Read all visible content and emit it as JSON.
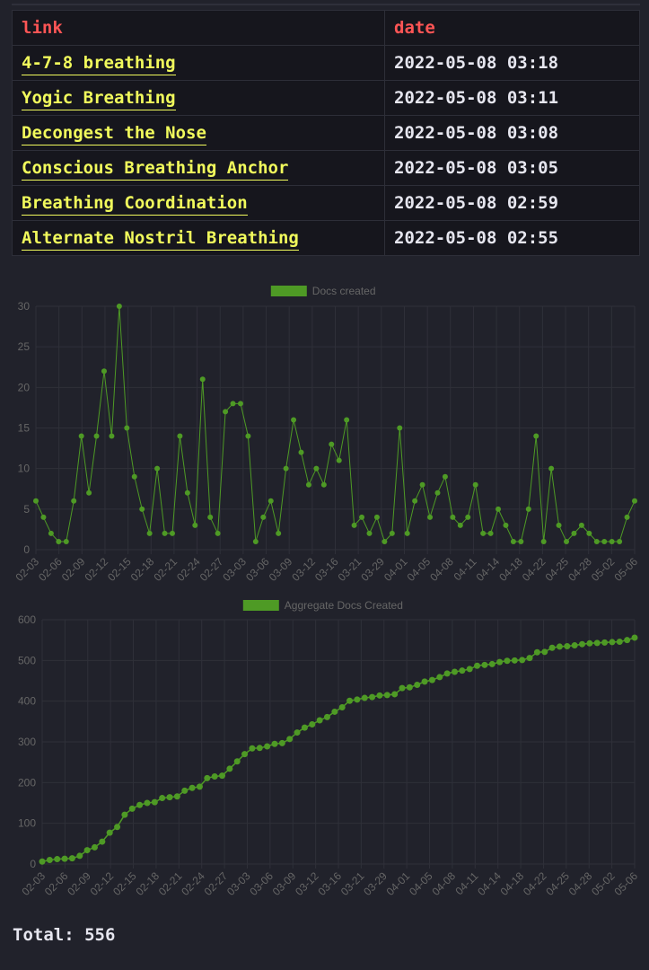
{
  "table": {
    "headers": {
      "link": "link",
      "date": "date"
    },
    "rows": [
      {
        "title": "4-7-8 breathing",
        "date": "2022-05-08 03:18"
      },
      {
        "title": "Yogic Breathing",
        "date": "2022-05-08 03:11"
      },
      {
        "title": "Decongest the Nose",
        "date": "2022-05-08 03:08"
      },
      {
        "title": "Conscious Breathing Anchor",
        "date": "2022-05-08 03:05"
      },
      {
        "title": "Breathing Coordination",
        "date": "2022-05-08 02:59"
      },
      {
        "title": "Alternate Nostril Breathing",
        "date": "2022-05-08 02:55"
      }
    ]
  },
  "colors": {
    "background": "#21222b",
    "table_bg": "#16161d",
    "header_text": "#ff5555",
    "link_text": "#f1fa5c",
    "date_text": "#e6e6ef",
    "series": "#4e9a25",
    "axis_text": "#666666",
    "grid": "#2f3039"
  },
  "chart_data": [
    {
      "type": "line",
      "legend": "Docs created",
      "legend_position": "top-center",
      "grid": true,
      "ylim": [
        0,
        30
      ],
      "yticks": [
        0,
        5,
        10,
        15,
        20,
        25,
        30
      ],
      "x_ticks": [
        "02-03",
        "02-06",
        "02-09",
        "02-12",
        "02-15",
        "02-18",
        "02-21",
        "02-24",
        "02-27",
        "03-03",
        "03-06",
        "03-09",
        "03-12",
        "03-16",
        "03-21",
        "03-29",
        "04-01",
        "04-05",
        "04-08",
        "04-11",
        "04-14",
        "04-18",
        "04-22",
        "04-25",
        "04-28",
        "05-02",
        "05-06"
      ],
      "values": [
        6,
        4,
        2,
        1,
        1,
        6,
        14,
        7,
        14,
        22,
        14,
        30,
        15,
        9,
        5,
        2,
        10,
        2,
        2,
        14,
        7,
        3,
        21,
        4,
        2,
        17,
        18,
        18,
        14,
        1,
        4,
        6,
        2,
        10,
        16,
        12,
        8,
        10,
        8,
        13,
        11,
        16,
        3,
        4,
        2,
        4,
        1,
        2,
        15,
        2,
        6,
        8,
        4,
        7,
        9,
        4,
        3,
        4,
        8,
        2,
        2,
        5,
        3,
        1,
        1,
        5,
        14,
        1,
        10,
        3,
        1,
        2,
        3,
        2,
        1,
        1,
        1,
        1,
        4,
        6
      ]
    },
    {
      "type": "line",
      "legend": "Aggregate Docs Created",
      "legend_position": "top-center",
      "grid": true,
      "ylim": [
        0,
        600
      ],
      "yticks": [
        0,
        100,
        200,
        300,
        400,
        500,
        600
      ],
      "x_ticks": [
        "02-03",
        "02-06",
        "02-09",
        "02-12",
        "02-15",
        "02-18",
        "02-21",
        "02-24",
        "02-27",
        "03-03",
        "03-06",
        "03-09",
        "03-12",
        "03-16",
        "03-21",
        "03-29",
        "04-01",
        "04-05",
        "04-08",
        "04-11",
        "04-14",
        "04-18",
        "04-22",
        "04-25",
        "04-28",
        "05-02",
        "05-06"
      ],
      "values": [
        6,
        10,
        12,
        13,
        14,
        20,
        34,
        41,
        55,
        77,
        91,
        121,
        136,
        145,
        150,
        152,
        162,
        164,
        166,
        180,
        187,
        190,
        211,
        215,
        217,
        234,
        252,
        270,
        284,
        285,
        289,
        295,
        297,
        307,
        323,
        335,
        343,
        353,
        361,
        374,
        385,
        401,
        404,
        408,
        410,
        414,
        415,
        417,
        432,
        434,
        440,
        448,
        452,
        459,
        468,
        472,
        475,
        479,
        487,
        489,
        491,
        496,
        499,
        500,
        501,
        506,
        520,
        521,
        531,
        534,
        535,
        537,
        540,
        542,
        543,
        544,
        545,
        546,
        550,
        556
      ]
    }
  ],
  "total": {
    "label": "Total:",
    "value": "556"
  }
}
